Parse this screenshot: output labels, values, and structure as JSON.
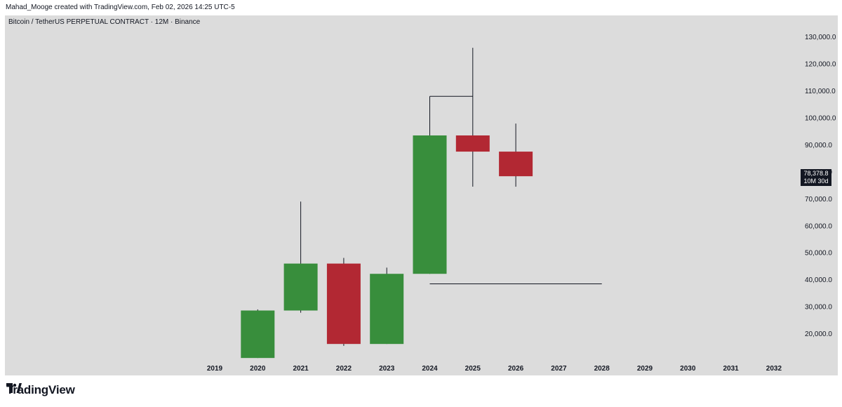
{
  "header": {
    "text": "Mahad_Mooge created with TradingView.com, Feb 02, 2026 14:25 UTC-5"
  },
  "symbol": {
    "text": "Bitcoin / TetherUS PERPETUAL CONTRACT · 12M · Binance"
  },
  "price_badge": {
    "price": "78,378.8",
    "countdown": "10M 30d"
  },
  "footer": {
    "brand": "TradingView"
  },
  "colors": {
    "up": "#388e3c",
    "down": "#b22833",
    "background": "#dcdcdc",
    "line": "#131722"
  },
  "chart_data": {
    "type": "candlestick",
    "title": "Bitcoin / TetherUS PERPETUAL CONTRACT · 12M · Binance",
    "x_labels": [
      "2019",
      "2020",
      "2021",
      "2022",
      "2023",
      "2024",
      "2025",
      "2026",
      "2027",
      "2028",
      "2029",
      "2030",
      "2031",
      "2032"
    ],
    "y_ticks": [
      20000,
      30000,
      40000,
      50000,
      60000,
      70000,
      80000,
      90000,
      100000,
      110000,
      120000,
      130000
    ],
    "y_tick_labels": [
      "20,000.0",
      "30,000.0",
      "40,000.0",
      "50,000.0",
      "60,000.0",
      "70,000.0",
      "80,000.0",
      "90,000.0",
      "100,000.0",
      "110,000.0",
      "120,000.0",
      "130,000.0"
    ],
    "ylim": [
      10000,
      132000
    ],
    "candles": [
      {
        "year": "2020",
        "open": 11000,
        "high": 29000,
        "low": 11000,
        "close": 28600
      },
      {
        "year": "2021",
        "open": 28600,
        "high": 69000,
        "low": 27800,
        "close": 46000
      },
      {
        "year": "2022",
        "open": 46000,
        "high": 48100,
        "low": 15500,
        "close": 16200
      },
      {
        "year": "2023",
        "open": 16200,
        "high": 44500,
        "low": 16200,
        "close": 42200
      },
      {
        "year": "2024",
        "open": 42200,
        "high": 108000,
        "low": 42200,
        "close": 93500
      },
      {
        "year": "2025",
        "open": 93500,
        "high": 126000,
        "low": 74500,
        "close": 87500
      },
      {
        "year": "2026",
        "open": 87500,
        "high": 97900,
        "low": 74500,
        "close": 78378.8
      }
    ],
    "drawn_lines": [
      {
        "from": "2024",
        "to": "2025",
        "price": 108000
      },
      {
        "from": "2024",
        "to": "2028",
        "price": 38500
      }
    ],
    "last_price": 78378.8
  }
}
